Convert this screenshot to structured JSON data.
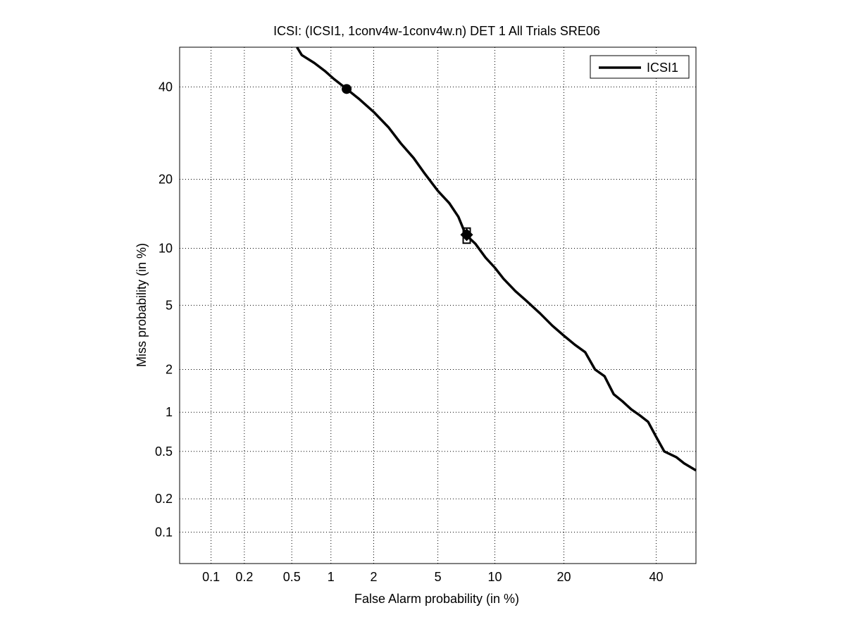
{
  "chart_data": {
    "type": "line",
    "title": "ICSI: (ICSI1, 1conv4w-1conv4w.n) DET 1 All Trials SRE06",
    "xlabel": "False Alarm probability (in %)",
    "ylabel": "Miss probability (in %)",
    "xscale": "normal-deviate (probit)",
    "yscale": "normal-deviate (probit)",
    "xlim": [
      0.05,
      50
    ],
    "ylim": [
      0.05,
      50
    ],
    "x_ticks": [
      0.1,
      0.2,
      0.5,
      1,
      2,
      5,
      10,
      20,
      40
    ],
    "x_tick_labels": [
      "0.1",
      "0.2",
      "0.5",
      "1",
      "2",
      "5",
      "10",
      "20",
      "40"
    ],
    "y_ticks": [
      0.1,
      0.2,
      0.5,
      1,
      2,
      5,
      10,
      20,
      40
    ],
    "y_tick_labels": [
      "0.1",
      "0.2",
      "0.5",
      "1",
      "2",
      "5",
      "10",
      "20",
      "40"
    ],
    "grid": true,
    "legend_position": "top-right",
    "series": [
      {
        "name": "ICSI1",
        "color": "#000000",
        "points": [
          [
            0.55,
            50
          ],
          [
            0.6,
            48
          ],
          [
            0.75,
            46
          ],
          [
            0.9,
            44
          ],
          [
            1.05,
            42
          ],
          [
            1.3,
            39.5
          ],
          [
            1.6,
            37
          ],
          [
            2.0,
            34
          ],
          [
            2.5,
            30.5
          ],
          [
            3.0,
            27
          ],
          [
            3.6,
            24
          ],
          [
            4.2,
            21
          ],
          [
            5.0,
            18
          ],
          [
            5.8,
            16
          ],
          [
            6.5,
            14
          ],
          [
            7.0,
            12
          ],
          [
            7.2,
            11.5
          ],
          [
            8.0,
            10.5
          ],
          [
            9.0,
            9
          ],
          [
            10.0,
            8
          ],
          [
            11.0,
            7
          ],
          [
            12.5,
            6
          ],
          [
            14.0,
            5.3
          ],
          [
            16.0,
            4.5
          ],
          [
            18.0,
            3.8
          ],
          [
            20.0,
            3.3
          ],
          [
            22.0,
            2.9
          ],
          [
            24.0,
            2.6
          ],
          [
            26.0,
            2.0
          ],
          [
            28.0,
            1.8
          ],
          [
            30.0,
            1.35
          ],
          [
            32.0,
            1.2
          ],
          [
            34.0,
            1.05
          ],
          [
            36.0,
            0.95
          ],
          [
            38.0,
            0.85
          ],
          [
            40.0,
            0.65
          ],
          [
            42.0,
            0.5
          ],
          [
            45.0,
            0.45
          ],
          [
            47.0,
            0.4
          ],
          [
            50.0,
            0.35
          ]
        ]
      }
    ],
    "markers": [
      {
        "shape": "circle",
        "x": 1.3,
        "y": 39.5
      },
      {
        "shape": "square",
        "x": 7.2,
        "y": 12.0
      },
      {
        "shape": "square",
        "x": 7.2,
        "y": 11.0
      },
      {
        "shape": "diamond",
        "x": 7.2,
        "y": 11.6
      }
    ]
  }
}
